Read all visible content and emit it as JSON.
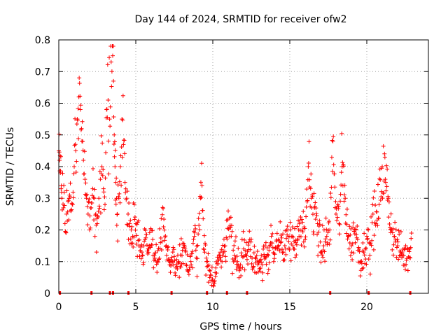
{
  "chart_data": {
    "type": "scatter",
    "title": "Day 144 of 2024, SRMTID for receiver ofw2",
    "xlabel": "GPS time / hours",
    "ylabel": "SRMTID / TECUs",
    "xlim": [
      0,
      24
    ],
    "ylim": [
      0,
      0.8
    ],
    "xticks": [
      0,
      5,
      10,
      15,
      20
    ],
    "yticks": [
      0,
      0.1,
      0.2,
      0.3,
      0.4,
      0.5,
      0.6,
      0.7,
      0.8
    ],
    "xtick_labels": [
      "0",
      "5",
      "10",
      "15",
      "20"
    ],
    "ytick_labels": [
      "0",
      "0.1",
      "0.2",
      "0.3",
      "0.4",
      "0.5",
      "0.6",
      "0.7",
      "0.8"
    ],
    "grid": true,
    "marker": "+",
    "series_color": "#ff0000",
    "series": [
      {
        "name": "SRMTID",
        "x": [
          0.0,
          0.05,
          0.1,
          0.15,
          0.2,
          0.3,
          0.4,
          0.5,
          0.6,
          0.7,
          0.8,
          0.9,
          1.0,
          1.1,
          1.2,
          1.3,
          1.4,
          1.5,
          1.6,
          1.7,
          1.8,
          1.9,
          2.0,
          2.1,
          2.2,
          2.3,
          2.4,
          2.5,
          2.6,
          2.7,
          2.8,
          2.9,
          3.0,
          3.1,
          3.2,
          3.3,
          3.4,
          3.5,
          3.55,
          3.6,
          3.65,
          3.7,
          3.75,
          3.8,
          3.9,
          4.0,
          4.1,
          4.2,
          4.3,
          4.4,
          4.5,
          4.6,
          4.7,
          4.8,
          4.9,
          5.0,
          5.2,
          5.4,
          5.6,
          5.8,
          6.0,
          6.2,
          6.4,
          6.6,
          6.8,
          7.0,
          7.2,
          7.4,
          7.6,
          7.8,
          8.0,
          8.2,
          8.4,
          8.6,
          8.8,
          9.0,
          9.2,
          9.3,
          9.4,
          9.6,
          9.8,
          10.0,
          10.2,
          10.4,
          10.6,
          10.8,
          11.0,
          11.2,
          11.4,
          11.6,
          11.8,
          12.0,
          12.2,
          12.4,
          12.6,
          12.8,
          13.0,
          13.2,
          13.4,
          13.6,
          13.8,
          14.0,
          14.2,
          14.4,
          14.6,
          14.8,
          15.0,
          15.2,
          15.4,
          15.6,
          15.8,
          16.0,
          16.2,
          16.4,
          16.6,
          16.8,
          17.0,
          17.2,
          17.4,
          17.6,
          17.8,
          18.0,
          18.2,
          18.4,
          18.6,
          18.8,
          19.0,
          19.2,
          19.4,
          19.6,
          19.8,
          20.0,
          20.2,
          20.4,
          20.6,
          20.8,
          21.0,
          21.2,
          21.4,
          21.6,
          21.8,
          22.0,
          22.2,
          22.4,
          22.6,
          22.8,
          22.9
        ],
        "y": [
          0.45,
          0.42,
          0.38,
          0.33,
          0.3,
          0.27,
          0.22,
          0.25,
          0.29,
          0.31,
          0.26,
          0.28,
          0.4,
          0.45,
          0.55,
          0.62,
          0.58,
          0.48,
          0.42,
          0.36,
          0.3,
          0.25,
          0.2,
          0.27,
          0.33,
          0.3,
          0.25,
          0.22,
          0.3,
          0.36,
          0.4,
          0.33,
          0.28,
          0.58,
          0.61,
          0.55,
          0.73,
          0.75,
          0.67,
          0.5,
          0.4,
          0.35,
          0.3,
          0.25,
          0.3,
          0.4,
          0.55,
          0.47,
          0.35,
          0.3,
          0.25,
          0.22,
          0.2,
          0.18,
          0.28,
          0.22,
          0.15,
          0.13,
          0.17,
          0.14,
          0.2,
          0.12,
          0.1,
          0.16,
          0.21,
          0.12,
          0.09,
          0.13,
          0.08,
          0.1,
          0.12,
          0.14,
          0.07,
          0.09,
          0.18,
          0.11,
          0.3,
          0.34,
          0.14,
          0.1,
          0.05,
          0.04,
          0.08,
          0.12,
          0.1,
          0.15,
          0.26,
          0.18,
          0.12,
          0.1,
          0.09,
          0.14,
          0.12,
          0.17,
          0.08,
          0.11,
          0.1,
          0.09,
          0.15,
          0.12,
          0.18,
          0.11,
          0.14,
          0.16,
          0.13,
          0.2,
          0.18,
          0.15,
          0.16,
          0.18,
          0.2,
          0.17,
          0.4,
          0.3,
          0.27,
          0.22,
          0.13,
          0.15,
          0.18,
          0.2,
          0.48,
          0.25,
          0.22,
          0.4,
          0.3,
          0.18,
          0.15,
          0.2,
          0.17,
          0.1,
          0.13,
          0.18,
          0.12,
          0.25,
          0.22,
          0.28,
          0.4,
          0.36,
          0.3,
          0.2,
          0.18,
          0.15,
          0.13,
          0.12,
          0.11,
          0.14,
          0.19
        ]
      }
    ],
    "gap_markers_x": [
      0.05,
      2.1,
      3.3,
      3.5,
      4.5,
      7.3,
      9.6,
      10.9,
      12.2,
      17.6,
      20.1,
      22.8
    ],
    "generator_seed": 144
  }
}
